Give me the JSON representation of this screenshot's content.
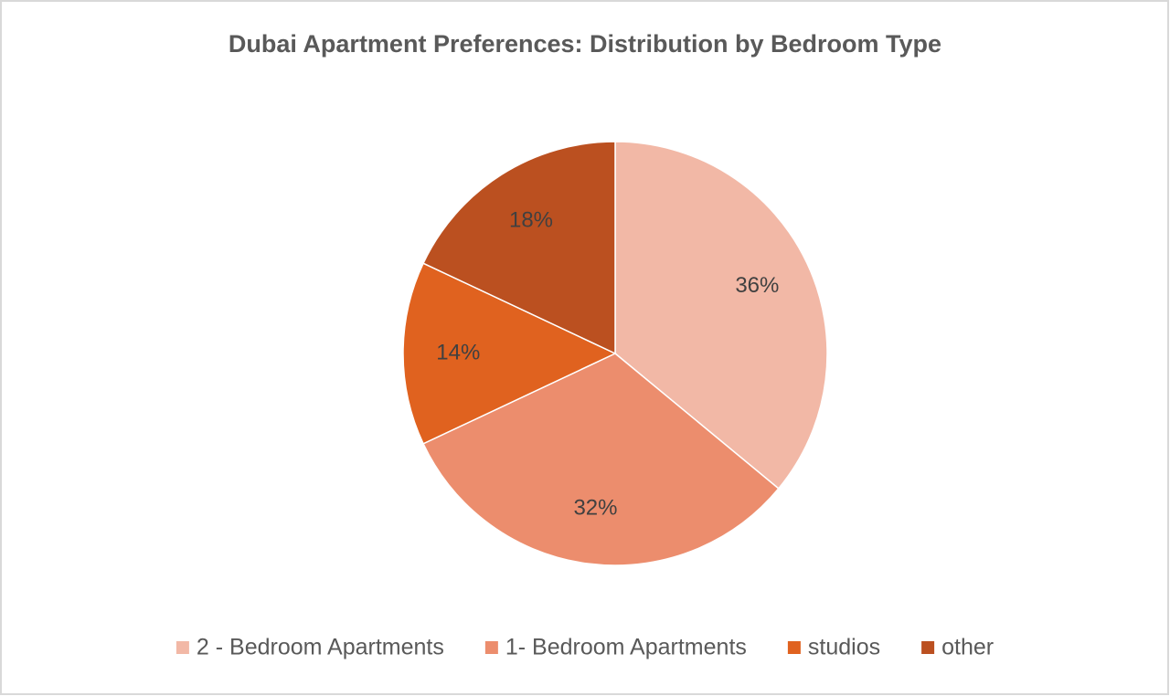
{
  "chart_data": {
    "type": "pie",
    "title": "Dubai Apartment Preferences: Distribution by Bedroom Type",
    "categories": [
      "2 - Bedroom Apartments",
      "1- Bedroom Apartments",
      "studios",
      "other"
    ],
    "values": [
      36,
      32,
      14,
      18
    ],
    "value_labels": [
      "36%",
      "32%",
      "14%",
      "18%"
    ],
    "colors": [
      "#f2b8a6",
      "#ec8d6d",
      "#e0621f",
      "#bb5020"
    ],
    "legend": "bottom"
  }
}
